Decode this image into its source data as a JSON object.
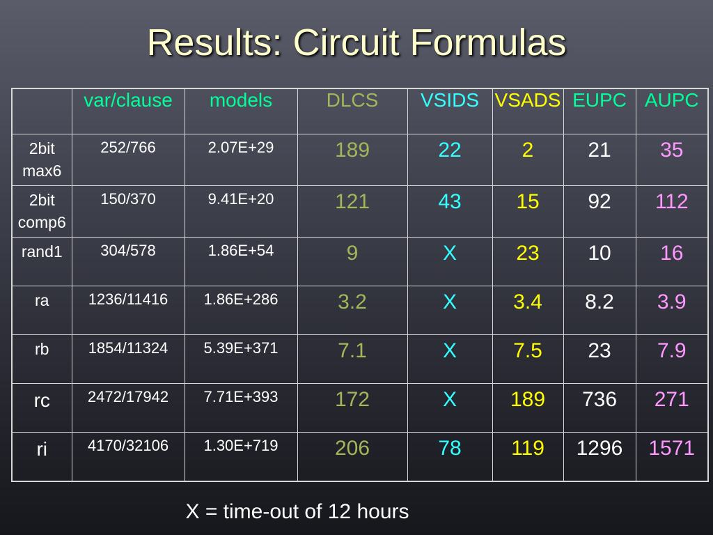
{
  "title": "Results: Circuit Formulas",
  "columns": [
    "",
    "var/clause",
    "models",
    "DLCS",
    "VSIDS",
    "VSADS",
    "EUPC",
    "AUPC"
  ],
  "rows": [
    {
      "label": [
        "2bit",
        "max6"
      ],
      "varclause": "252/766",
      "models": "2.07E+29",
      "dlcs": "189",
      "vsids": "22",
      "vsads": "2",
      "eupc": "21",
      "aupc": "35"
    },
    {
      "label": [
        "2bit",
        "comp6"
      ],
      "varclause": "150/370",
      "models": "9.41E+20",
      "dlcs": "121",
      "vsids": "43",
      "vsads": "15",
      "eupc": "92",
      "aupc": "112"
    },
    {
      "label": [
        "rand1"
      ],
      "varclause": "304/578",
      "models": "1.86E+54",
      "dlcs": "9",
      "vsids": "X",
      "vsads": "23",
      "eupc": "10",
      "aupc": "16"
    },
    {
      "label": [
        "ra"
      ],
      "varclause": "1236/11416",
      "models": "1.86E+286",
      "dlcs": "3.2",
      "vsids": "X",
      "vsads": "3.4",
      "eupc": "8.2",
      "aupc": "3.9"
    },
    {
      "label": [
        "rb"
      ],
      "varclause": "1854/11324",
      "models": "5.39E+371",
      "dlcs": "7.1",
      "vsids": "X",
      "vsads": "7.5",
      "eupc": "23",
      "aupc": "7.9"
    },
    {
      "label": [
        "rc"
      ],
      "varclause": "2472/17942",
      "models": "7.71E+393",
      "dlcs": "172",
      "vsids": "X",
      "vsads": "189",
      "eupc": "736",
      "aupc": "271"
    },
    {
      "label": [
        "ri"
      ],
      "varclause": "4170/32106",
      "models": "1.30E+719",
      "dlcs": "206",
      "vsids": "78",
      "vsads": "119",
      "eupc": "1296",
      "aupc": "1571"
    }
  ],
  "colors": {
    "title": "#ffffcc",
    "header_varclause": "#00ff99",
    "dlcs": "#a3b65a",
    "vsids": "#33ffff",
    "vsads": "#ffff00",
    "eupc": "#ffffff",
    "aupc": "#ff99ff"
  },
  "footnote": "X = time-out of 12 hours"
}
